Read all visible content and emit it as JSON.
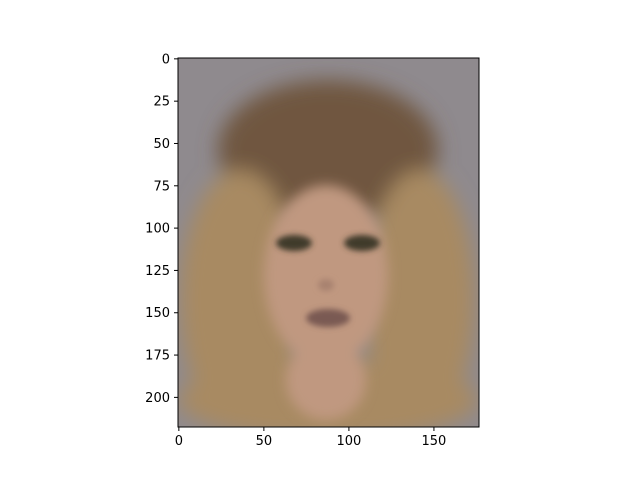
{
  "chart_data": {
    "type": "image",
    "image": {
      "subject": "blurry face",
      "width": 177,
      "height": 218,
      "extent_x": [
        -0.5,
        176.5
      ],
      "extent_y": [
        217.5,
        -0.5
      ]
    },
    "xticks": [
      0,
      50,
      100,
      150
    ],
    "yticks": [
      0,
      25,
      50,
      75,
      100,
      125,
      150,
      175,
      200
    ],
    "xlim": [
      -0.5,
      176.5
    ],
    "ylim": [
      217.5,
      -0.5
    ],
    "colors": {
      "background": "#8f8a8e",
      "hair_dark": "#6f5640",
      "hair_light": "#a88a62",
      "skin": "#c09880",
      "eyes": "#3f3a2c",
      "lips": "#7a5a52"
    }
  }
}
